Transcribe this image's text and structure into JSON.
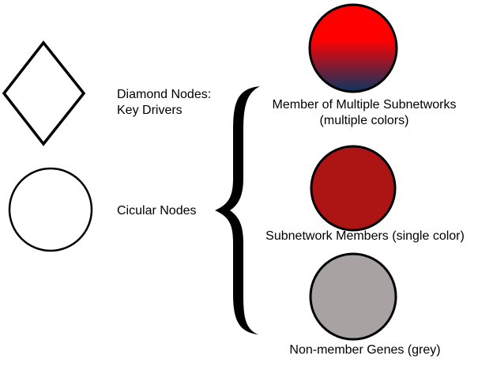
{
  "diamond": {
    "label_line1": "Diamond Nodes:",
    "label_line2": "Key Drivers"
  },
  "circular": {
    "label": "Cicular Nodes"
  },
  "groups": {
    "multiple": {
      "label_line1": "Member of Multiple Subnetworks",
      "label_line2": "(multiple colors)",
      "gradient_top": "#ff0000",
      "gradient_bottom": "#0a3560"
    },
    "single": {
      "label": "Subnetwork Members (single color)",
      "fill": "#ad1414"
    },
    "nonmember": {
      "label": "Non-member Genes (grey)",
      "fill": "#a8a2a2"
    }
  }
}
